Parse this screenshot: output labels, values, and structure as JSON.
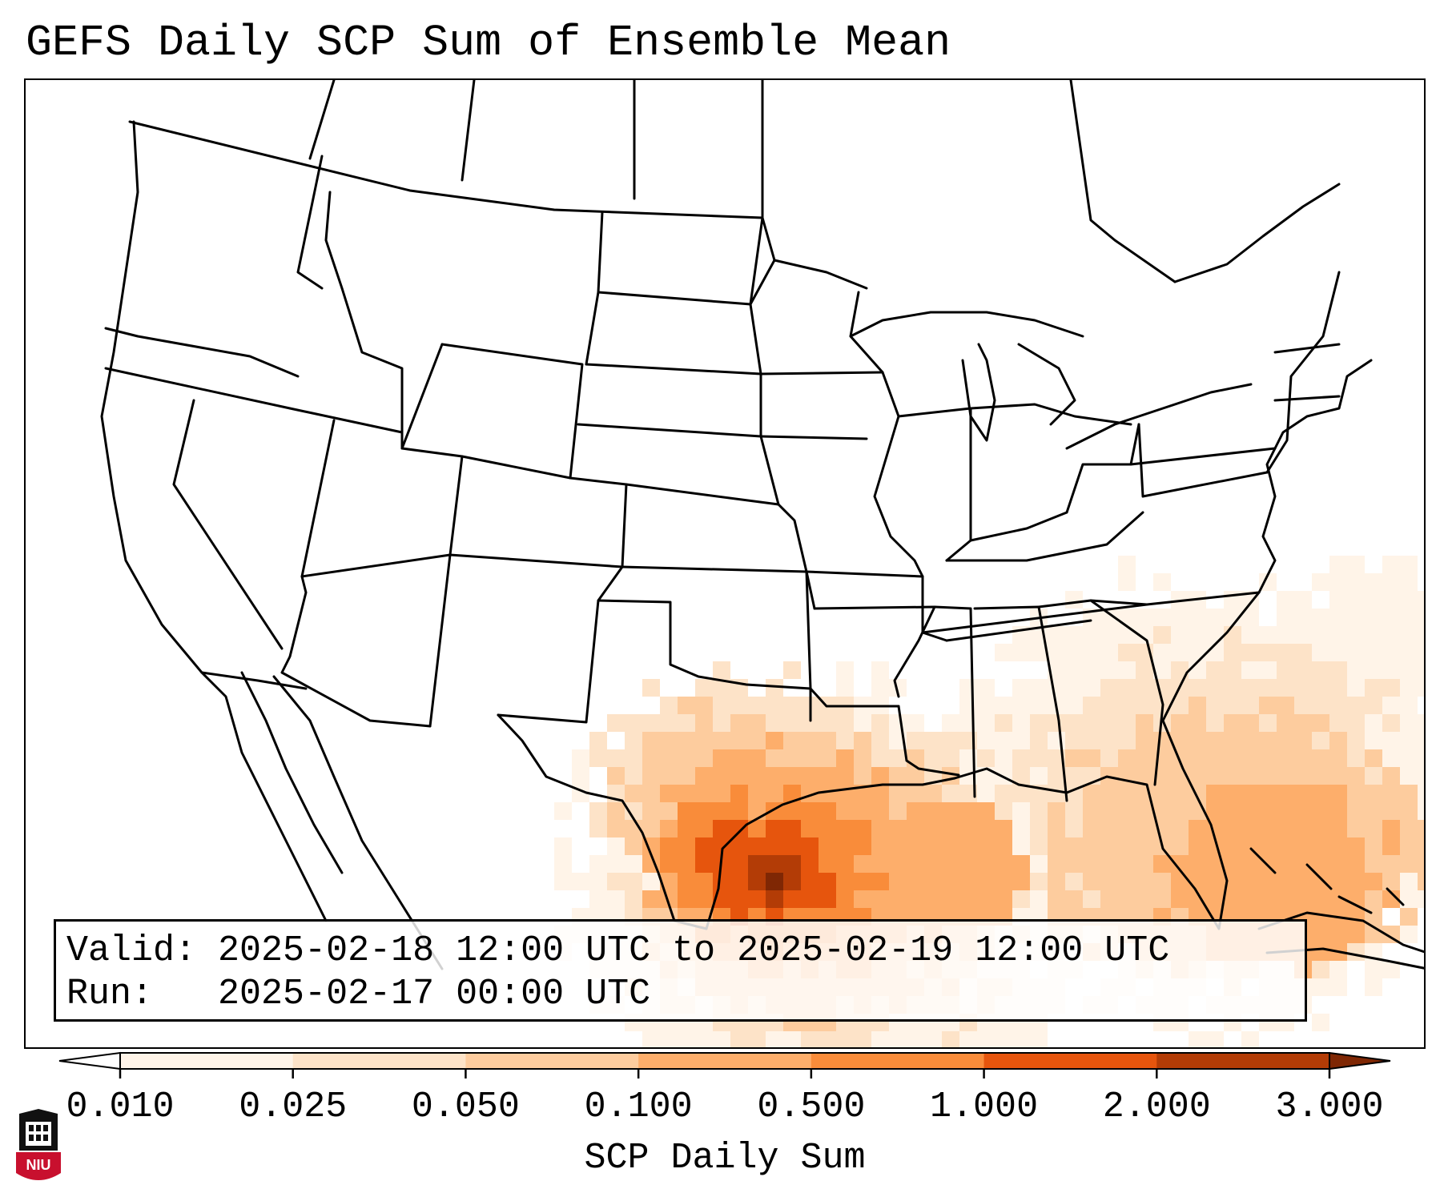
{
  "title": "GEFS Daily SCP Sum of Ensemble Mean",
  "info": {
    "valid_label": "Valid:",
    "valid_value": "2025-02-18 12:00 UTC to 2025-02-19 12:00 UTC",
    "run_label": "Run:",
    "run_value": "2025-02-17 00:00 UTC"
  },
  "colorbar": {
    "label": "SCP Daily Sum",
    "ticks": [
      "0.010",
      "0.025",
      "0.050",
      "0.100",
      "0.500",
      "1.000",
      "2.000",
      "3.000"
    ],
    "colors": [
      "#fff4e8",
      "#fde3c8",
      "#fdcc9e",
      "#fdae6b",
      "#f98c3a",
      "#e6550d",
      "#b33c06",
      "#7f2704"
    ],
    "extend": "both"
  },
  "logo": {
    "text": "NIU",
    "colors": {
      "shield": "#c8102e",
      "tower": "#111111"
    }
  },
  "map": {
    "projection": "Lambert Conformal",
    "region": "CONUS",
    "field": "SCP Daily Sum",
    "max_region": "Southeast Texas coast"
  }
}
